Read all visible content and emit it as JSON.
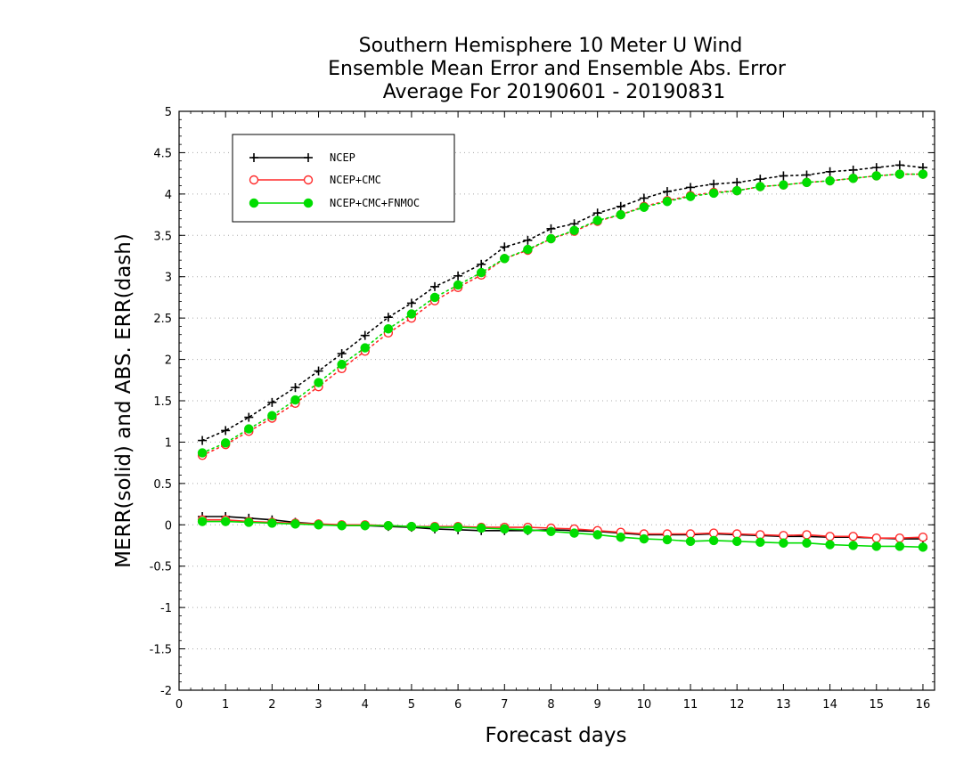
{
  "chart_data": {
    "type": "line",
    "title_lines": [
      "Southern Hemisphere 10 Meter U Wind",
      "Ensemble Mean Error and Ensemble Abs. Error",
      "Average For 20190601 - 20190831"
    ],
    "xlabel": "Forecast days",
    "ylabel": "MERR(solid) and ABS. ERR(dash)",
    "xlim": [
      0,
      16.25
    ],
    "ylim": [
      -2,
      5
    ],
    "x_ticks": [
      "0",
      "1",
      "2",
      "3",
      "4",
      "5",
      "6",
      "7",
      "8",
      "9",
      "10",
      "11",
      "12",
      "13",
      "14",
      "15",
      "16"
    ],
    "y_ticks": [
      "5",
      "4.5",
      "4",
      "3.5",
      "3",
      "2.5",
      "2",
      "1.5",
      "1",
      "0.5",
      "0",
      "-0.5",
      "-1",
      "-1.5",
      "-2"
    ],
    "grid": "horizontal dotted",
    "legend_position": "top-left",
    "x": [
      0.5,
      1,
      1.5,
      2,
      2.5,
      3,
      3.5,
      4,
      4.5,
      5,
      5.5,
      6,
      6.5,
      7,
      7.5,
      8,
      8.5,
      9,
      9.5,
      10,
      10.5,
      11,
      11.5,
      12,
      12.5,
      13,
      13.5,
      14,
      14.5,
      15,
      15.5,
      16
    ],
    "series": [
      {
        "name": "NCEP",
        "color": "#000000",
        "marker": "plus",
        "abs_error": [
          1.02,
          1.14,
          1.3,
          1.48,
          1.66,
          1.86,
          2.07,
          2.29,
          2.51,
          2.68,
          2.88,
          3.01,
          3.15,
          3.36,
          3.44,
          3.58,
          3.64,
          3.77,
          3.85,
          3.95,
          4.03,
          4.08,
          4.12,
          4.14,
          4.18,
          4.22,
          4.23,
          4.27,
          4.29,
          4.32,
          4.35,
          4.32
        ],
        "mean_error": [
          0.1,
          0.1,
          0.08,
          0.06,
          0.03,
          0.01,
          -0.01,
          -0.01,
          -0.02,
          -0.03,
          -0.05,
          -0.06,
          -0.07,
          -0.07,
          -0.07,
          -0.06,
          -0.07,
          -0.08,
          -0.1,
          -0.12,
          -0.12,
          -0.12,
          -0.11,
          -0.12,
          -0.13,
          -0.14,
          -0.14,
          -0.15,
          -0.15,
          -0.16,
          -0.17,
          -0.17
        ]
      },
      {
        "name": "NCEP+CMC",
        "color": "#ff2a2a",
        "marker": "open-circle",
        "abs_error": [
          0.84,
          0.97,
          1.13,
          1.29,
          1.47,
          1.67,
          1.89,
          2.1,
          2.32,
          2.5,
          2.71,
          2.87,
          3.02,
          3.22,
          3.32,
          3.46,
          3.55,
          3.67,
          3.75,
          3.85,
          3.92,
          3.98,
          4.02,
          4.04,
          4.09,
          4.11,
          4.14,
          4.16,
          4.19,
          4.22,
          4.24,
          4.24
        ],
        "mean_error": [
          0.06,
          0.06,
          0.04,
          0.03,
          0.02,
          0.01,
          0.0,
          0.0,
          -0.01,
          -0.02,
          -0.02,
          -0.02,
          -0.03,
          -0.03,
          -0.03,
          -0.04,
          -0.05,
          -0.07,
          -0.09,
          -0.11,
          -0.11,
          -0.11,
          -0.1,
          -0.11,
          -0.12,
          -0.13,
          -0.12,
          -0.14,
          -0.14,
          -0.16,
          -0.16,
          -0.15
        ]
      },
      {
        "name": "NCEP+CMC+FNMOC",
        "color": "#00dd00",
        "marker": "filled-circle",
        "abs_error": [
          0.87,
          0.99,
          1.16,
          1.32,
          1.51,
          1.72,
          1.94,
          2.14,
          2.37,
          2.55,
          2.75,
          2.9,
          3.05,
          3.22,
          3.33,
          3.46,
          3.56,
          3.68,
          3.75,
          3.84,
          3.91,
          3.97,
          4.01,
          4.04,
          4.09,
          4.11,
          4.14,
          4.16,
          4.19,
          4.22,
          4.24,
          4.24
        ],
        "mean_error": [
          0.04,
          0.04,
          0.03,
          0.02,
          0.01,
          0.0,
          -0.01,
          -0.01,
          -0.01,
          -0.02,
          -0.03,
          -0.03,
          -0.04,
          -0.05,
          -0.06,
          -0.08,
          -0.1,
          -0.12,
          -0.15,
          -0.17,
          -0.18,
          -0.2,
          -0.19,
          -0.2,
          -0.21,
          -0.22,
          -0.22,
          -0.24,
          -0.25,
          -0.26,
          -0.26,
          -0.27
        ]
      }
    ]
  }
}
